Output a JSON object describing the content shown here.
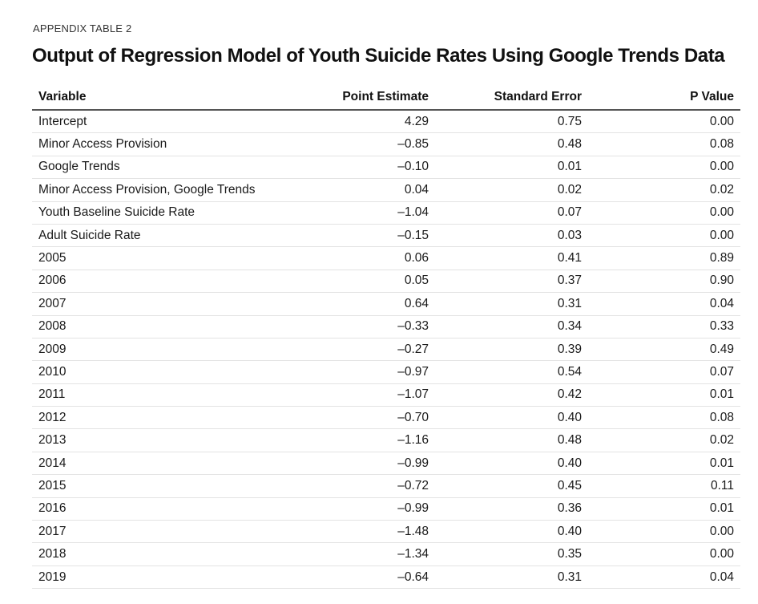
{
  "header": {
    "kicker": "APPENDIX TABLE 2",
    "title": "Output of Regression Model of Youth Suicide Rates Using Google Trends Data"
  },
  "table": {
    "columns": [
      "Variable",
      "Point Estimate",
      "Standard Error",
      "P Value"
    ],
    "rows": [
      {
        "variable": "Intercept",
        "estimate": "4.29",
        "se": "0.75",
        "p": "0.00"
      },
      {
        "variable": "Minor Access Provision",
        "estimate": "–0.85",
        "se": "0.48",
        "p": "0.08"
      },
      {
        "variable": "Google Trends",
        "estimate": "–0.10",
        "se": "0.01",
        "p": "0.00"
      },
      {
        "variable": "Minor Access Provision, Google Trends",
        "estimate": "0.04",
        "se": "0.02",
        "p": "0.02"
      },
      {
        "variable": "Youth Baseline Suicide Rate",
        "estimate": "–1.04",
        "se": "0.07",
        "p": "0.00"
      },
      {
        "variable": "Adult Suicide Rate",
        "estimate": "–0.15",
        "se": "0.03",
        "p": "0.00"
      },
      {
        "variable": "2005",
        "estimate": "0.06",
        "se": "0.41",
        "p": "0.89"
      },
      {
        "variable": "2006",
        "estimate": "0.05",
        "se": "0.37",
        "p": "0.90"
      },
      {
        "variable": "2007",
        "estimate": "0.64",
        "se": "0.31",
        "p": "0.04"
      },
      {
        "variable": "2008",
        "estimate": "–0.33",
        "se": "0.34",
        "p": "0.33"
      },
      {
        "variable": "2009",
        "estimate": "–0.27",
        "se": "0.39",
        "p": "0.49"
      },
      {
        "variable": "2010",
        "estimate": "–0.97",
        "se": "0.54",
        "p": "0.07"
      },
      {
        "variable": "2011",
        "estimate": "–1.07",
        "se": "0.42",
        "p": "0.01"
      },
      {
        "variable": "2012",
        "estimate": "–0.70",
        "se": "0.40",
        "p": "0.08"
      },
      {
        "variable": "2013",
        "estimate": "–1.16",
        "se": "0.48",
        "p": "0.02"
      },
      {
        "variable": "2014",
        "estimate": "–0.99",
        "se": "0.40",
        "p": "0.01"
      },
      {
        "variable": "2015",
        "estimate": "–0.72",
        "se": "0.45",
        "p": "0.11"
      },
      {
        "variable": "2016",
        "estimate": "–0.99",
        "se": "0.36",
        "p": "0.01"
      },
      {
        "variable": "2017",
        "estimate": "–1.48",
        "se": "0.40",
        "p": "0.00"
      },
      {
        "variable": "2018",
        "estimate": "–1.34",
        "se": "0.35",
        "p": "0.00"
      },
      {
        "variable": "2019",
        "estimate": "–0.64",
        "se": "0.31",
        "p": "0.04"
      }
    ]
  }
}
